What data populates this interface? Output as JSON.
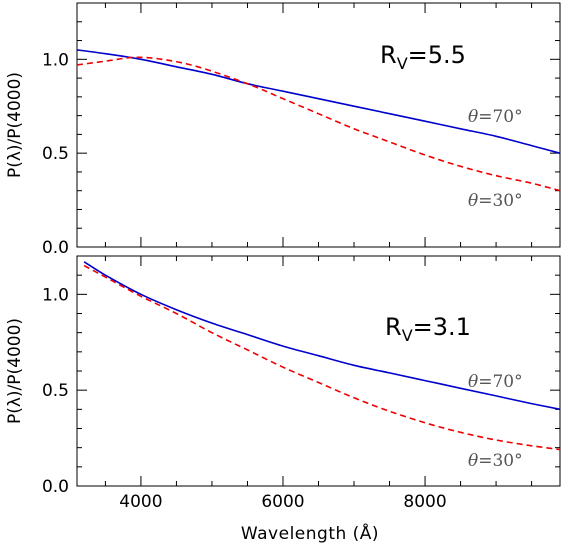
{
  "figure": {
    "xlabel": "Wavelength (Å)",
    "ylabel": "P(λ)/P(4000)"
  },
  "chart_data": [
    {
      "type": "line",
      "panel": "top",
      "annotation_prefix": "R",
      "annotation_sub": "V",
      "annotation_value": "=5.5",
      "xlabel": "",
      "ylabel": "P(λ)/P(4000)",
      "xlim": [
        3100,
        9900
      ],
      "ylim": [
        0.0,
        1.3
      ],
      "x_ticks": [
        4000,
        6000,
        8000
      ],
      "y_ticks": [
        0.0,
        0.5,
        1.0
      ],
      "y_tick_labels": [
        "0.0",
        "0.5",
        "1.0"
      ],
      "x_minor_step": 500,
      "y_minor_step": 0.1,
      "series": [
        {
          "label": "θ=70°",
          "style": "solid",
          "color": "#0000cc",
          "x": [
            3100,
            3500,
            4000,
            4500,
            5000,
            5500,
            6000,
            6500,
            7000,
            7500,
            8000,
            8500,
            9000,
            9500,
            9900
          ],
          "y": [
            1.05,
            1.03,
            1.0,
            0.96,
            0.92,
            0.87,
            0.83,
            0.79,
            0.75,
            0.71,
            0.67,
            0.63,
            0.59,
            0.54,
            0.5
          ]
        },
        {
          "label": "θ=30°",
          "style": "dashed",
          "color": "#ee0000",
          "x": [
            3100,
            3500,
            3900,
            4300,
            4800,
            5500,
            6000,
            6500,
            7000,
            7500,
            8000,
            8500,
            9000,
            9500,
            9900
          ],
          "y": [
            0.97,
            0.99,
            1.01,
            1.0,
            0.96,
            0.87,
            0.79,
            0.71,
            0.63,
            0.56,
            0.49,
            0.43,
            0.38,
            0.34,
            0.3
          ]
        }
      ],
      "series_labels": {
        "theta70": "=70°",
        "theta30": "=30°",
        "theta_symbol": "θ"
      }
    },
    {
      "type": "line",
      "panel": "bottom",
      "annotation_prefix": "R",
      "annotation_sub": "V",
      "annotation_value": "=3.1",
      "xlabel": "Wavelength (Å)",
      "ylabel": "P(λ)/P(4000)",
      "xlim": [
        3100,
        9900
      ],
      "ylim": [
        0.0,
        1.2
      ],
      "x_ticks": [
        4000,
        6000,
        8000
      ],
      "x_tick_labels": [
        "4000",
        "6000",
        "8000"
      ],
      "y_ticks": [
        0.0,
        0.5,
        1.0
      ],
      "y_tick_labels": [
        "0.0",
        "0.5",
        "1.0"
      ],
      "x_minor_step": 500,
      "y_minor_step": 0.1,
      "series": [
        {
          "label": "θ=70°",
          "style": "solid",
          "color": "#0000cc",
          "x": [
            3200,
            3500,
            4000,
            4500,
            5000,
            5500,
            6000,
            6500,
            7000,
            7500,
            8000,
            8500,
            9000,
            9500,
            9900
          ],
          "y": [
            1.17,
            1.1,
            1.0,
            0.92,
            0.85,
            0.79,
            0.73,
            0.68,
            0.63,
            0.59,
            0.55,
            0.51,
            0.47,
            0.43,
            0.4
          ]
        },
        {
          "label": "θ=30°",
          "style": "dashed",
          "color": "#ee0000",
          "x": [
            3200,
            3500,
            4000,
            4500,
            5000,
            5500,
            6000,
            6500,
            7000,
            7500,
            8000,
            8500,
            9000,
            9500,
            9900
          ],
          "y": [
            1.15,
            1.09,
            0.99,
            0.9,
            0.8,
            0.71,
            0.62,
            0.54,
            0.46,
            0.39,
            0.33,
            0.28,
            0.24,
            0.21,
            0.19
          ]
        }
      ],
      "series_labels": {
        "theta70": "=70°",
        "theta30": "=30°",
        "theta_symbol": "θ"
      }
    }
  ]
}
